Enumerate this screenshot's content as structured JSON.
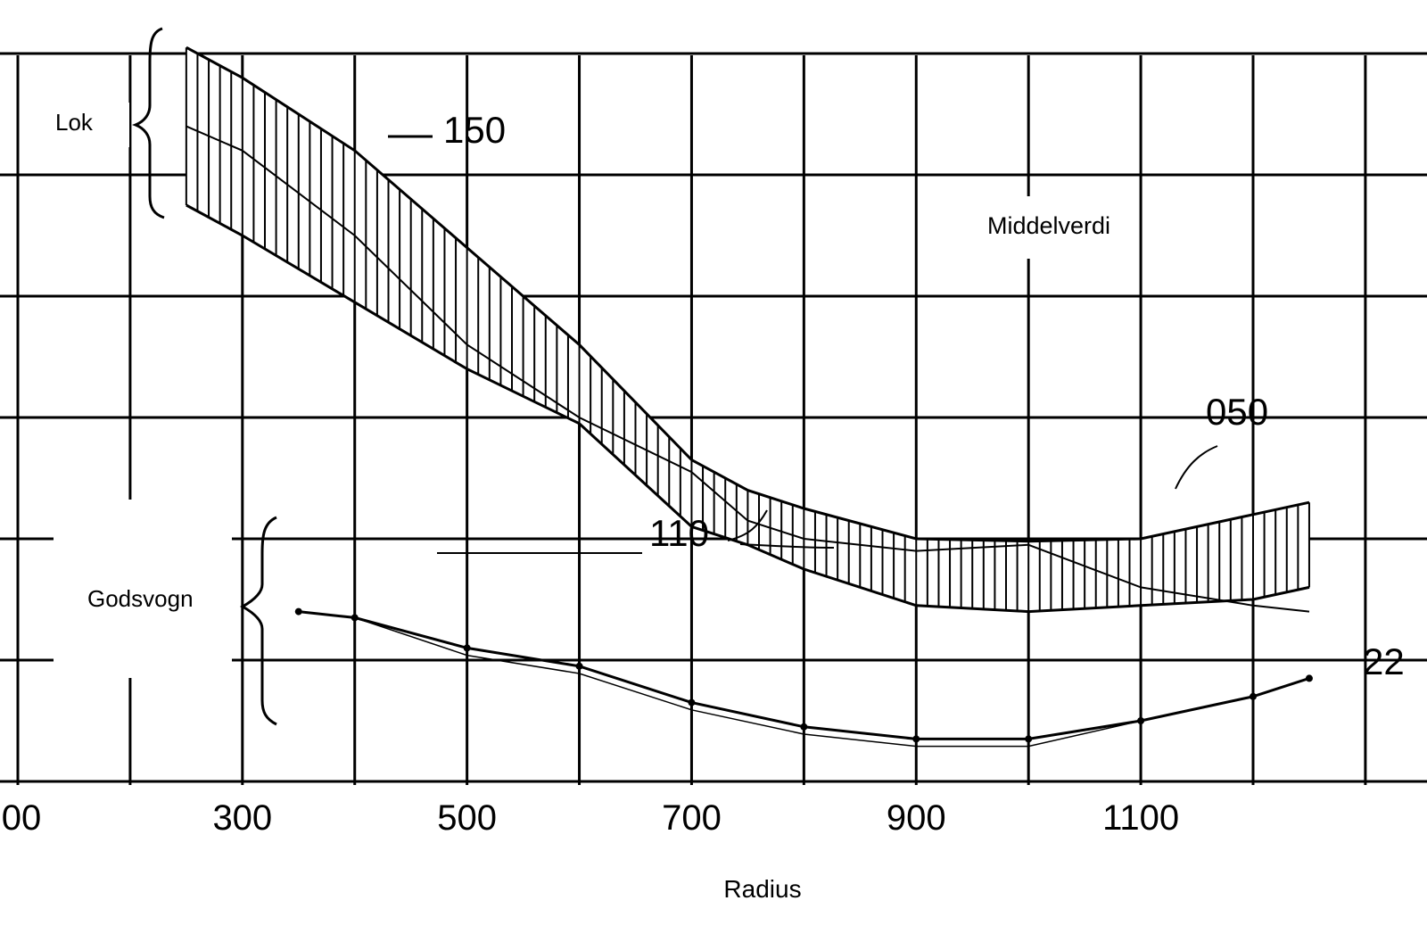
{
  "chart_data": {
    "type": "area",
    "xlabel": "Radius",
    "ylabel": "",
    "xlim": [
      100,
      1300
    ],
    "x_tick_labels": [
      "00",
      "300",
      "500",
      "700",
      "900",
      "1100"
    ],
    "grid": true,
    "series": [
      {
        "name": "Lok",
        "kind": "band",
        "x": [
          250,
          300,
          400,
          500,
          600,
          700,
          750,
          800,
          900,
          1000,
          1100,
          1200,
          1250
        ],
        "upper": [
          6.05,
          5.8,
          5.2,
          4.4,
          3.6,
          2.65,
          2.4,
          2.25,
          2.0,
          1.98,
          2.0,
          2.2,
          2.3
        ],
        "mid": [
          5.4,
          5.2,
          4.5,
          3.6,
          3.0,
          2.55,
          2.15,
          2.0,
          1.9,
          1.95,
          1.6,
          1.45,
          1.4
        ],
        "lower": [
          4.75,
          4.5,
          3.95,
          3.4,
          2.95,
          2.1,
          1.95,
          1.75,
          1.45,
          1.4,
          1.45,
          1.5,
          1.6
        ]
      },
      {
        "name": "Godsvogn",
        "kind": "line",
        "x": [
          350,
          400,
          500,
          600,
          700,
          800,
          900,
          1000,
          1100,
          1200,
          1250
        ],
        "values": [
          1.4,
          1.35,
          1.1,
          0.95,
          0.65,
          0.45,
          0.35,
          0.35,
          0.5,
          0.7,
          0.85
        ]
      }
    ],
    "annotations": [
      {
        "text": "Lok"
      },
      {
        "text": "Godsvogn"
      },
      {
        "text": "150"
      },
      {
        "text": "110"
      },
      {
        "text": "050"
      },
      {
        "text": "22"
      },
      {
        "text": "Middelverdi"
      }
    ]
  }
}
